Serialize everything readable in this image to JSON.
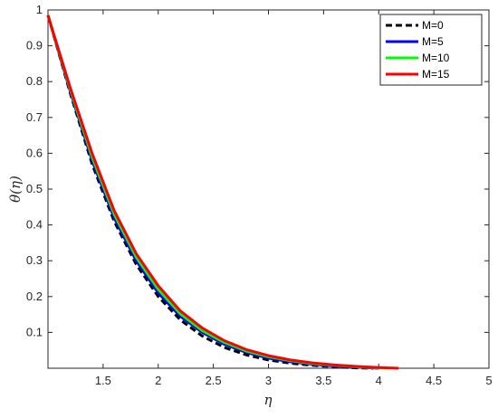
{
  "chart_data": {
    "type": "line",
    "xlabel": "η",
    "ylabel": "θ(η)",
    "xlim": [
      1,
      5
    ],
    "ylim": [
      0,
      1
    ],
    "x_ticks": [
      1.5,
      2,
      2.5,
      3,
      3.5,
      4,
      4.5,
      5
    ],
    "y_ticks": [
      0.1,
      0.2,
      0.3,
      0.4,
      0.5,
      0.6,
      0.7,
      0.8,
      0.9,
      1
    ],
    "grid": false,
    "legend_position": "top-right",
    "series": [
      {
        "name": "M=0",
        "color": "#000000",
        "style": "dashed",
        "x": [
          1.0,
          1.2,
          1.4,
          1.6,
          1.8,
          2.0,
          2.2,
          2.4,
          2.6,
          2.8,
          3.0,
          3.2,
          3.4,
          3.6,
          3.8,
          3.95
        ],
        "y": [
          0.985,
          0.77,
          0.57,
          0.41,
          0.29,
          0.2,
          0.135,
          0.09,
          0.058,
          0.037,
          0.023,
          0.014,
          0.008,
          0.004,
          0.001,
          0.0
        ]
      },
      {
        "name": "M=5",
        "color": "#0000ff",
        "style": "solid",
        "x": [
          1.0,
          1.2,
          1.4,
          1.6,
          1.8,
          2.0,
          2.2,
          2.4,
          2.6,
          2.8,
          3.0,
          3.2,
          3.4,
          3.6,
          3.8,
          4.0
        ],
        "y": [
          0.985,
          0.775,
          0.58,
          0.42,
          0.3,
          0.21,
          0.145,
          0.1,
          0.067,
          0.044,
          0.028,
          0.018,
          0.011,
          0.006,
          0.003,
          0.0
        ]
      },
      {
        "name": "M=10",
        "color": "#00ff00",
        "style": "solid",
        "x": [
          1.0,
          1.2,
          1.4,
          1.6,
          1.8,
          2.0,
          2.2,
          2.4,
          2.6,
          2.8,
          3.0,
          3.2,
          3.4,
          3.6,
          3.8,
          4.0,
          4.1
        ],
        "y": [
          0.985,
          0.78,
          0.59,
          0.43,
          0.31,
          0.22,
          0.152,
          0.105,
          0.072,
          0.048,
          0.032,
          0.021,
          0.013,
          0.008,
          0.004,
          0.001,
          0.0
        ]
      },
      {
        "name": "M=15",
        "color": "#ff0000",
        "style": "solid",
        "x": [
          1.0,
          1.2,
          1.4,
          1.6,
          1.8,
          2.0,
          2.2,
          2.4,
          2.6,
          2.8,
          3.0,
          3.2,
          3.4,
          3.6,
          3.8,
          4.0,
          4.18
        ],
        "y": [
          0.985,
          0.785,
          0.6,
          0.44,
          0.32,
          0.23,
          0.16,
          0.112,
          0.077,
          0.052,
          0.035,
          0.023,
          0.015,
          0.009,
          0.005,
          0.002,
          0.0
        ]
      }
    ]
  }
}
